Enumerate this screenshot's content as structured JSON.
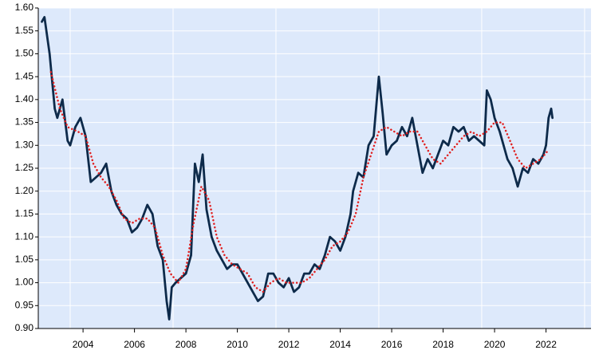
{
  "chart_data": {
    "type": "line",
    "xlim": [
      2002.76,
      2024.25
    ],
    "ylim": [
      0.9,
      1.6
    ],
    "xticks": [
      {
        "value": 2004.5,
        "label": "2004"
      },
      {
        "value": 2006.5,
        "label": "2006"
      },
      {
        "value": 2008.5,
        "label": "2008"
      },
      {
        "value": 2010.5,
        "label": "2010"
      },
      {
        "value": 2012.5,
        "label": "2012"
      },
      {
        "value": 2014.5,
        "label": "2014"
      },
      {
        "value": 2016.5,
        "label": "2016"
      },
      {
        "value": 2018.5,
        "label": "2018"
      },
      {
        "value": 2020.5,
        "label": "2020"
      },
      {
        "value": 2022.5,
        "label": "2022"
      }
    ],
    "xgrid": [
      2004,
      2008,
      2012,
      2016,
      2020,
      2024
    ],
    "yticks": [
      {
        "value": 0.9,
        "label": "0.90"
      },
      {
        "value": 0.95,
        "label": "0.95"
      },
      {
        "value": 1.0,
        "label": "1.00"
      },
      {
        "value": 1.05,
        "label": "1.05"
      },
      {
        "value": 1.1,
        "label": "1.10"
      },
      {
        "value": 1.15,
        "label": "1.15"
      },
      {
        "value": 1.2,
        "label": "1.20"
      },
      {
        "value": 1.25,
        "label": "1.25"
      },
      {
        "value": 1.3,
        "label": "1.30"
      },
      {
        "value": 1.35,
        "label": "1.35"
      },
      {
        "value": 1.4,
        "label": "1.40"
      },
      {
        "value": 1.45,
        "label": "1.45"
      },
      {
        "value": 1.5,
        "label": "1.50"
      },
      {
        "value": 1.55,
        "label": "1.55"
      },
      {
        "value": 1.6,
        "label": "1.60"
      }
    ],
    "grid": true,
    "background": "#dde9fb",
    "series": [
      {
        "color": "#0d2a4a",
        "style": "solid",
        "x": [
          2002.9,
          2003.0,
          2003.2,
          2003.4,
          2003.5,
          2003.7,
          2003.9,
          2004.0,
          2004.2,
          2004.4,
          2004.6,
          2004.8,
          2005.0,
          2005.2,
          2005.4,
          2005.6,
          2005.8,
          2006.0,
          2006.2,
          2006.4,
          2006.6,
          2006.8,
          2007.0,
          2007.2,
          2007.4,
          2007.6,
          2007.75,
          2007.85,
          2007.95,
          2008.1,
          2008.3,
          2008.5,
          2008.7,
          2008.85,
          2009.0,
          2009.15,
          2009.3,
          2009.5,
          2009.7,
          2009.9,
          2010.1,
          2010.3,
          2010.5,
          2010.7,
          2010.9,
          2011.1,
          2011.3,
          2011.5,
          2011.7,
          2011.9,
          2012.1,
          2012.3,
          2012.5,
          2012.7,
          2012.9,
          2013.1,
          2013.3,
          2013.5,
          2013.7,
          2013.9,
          2014.1,
          2014.3,
          2014.5,
          2014.7,
          2014.9,
          2015.0,
          2015.2,
          2015.4,
          2015.6,
          2015.8,
          2016.0,
          2016.15,
          2016.3,
          2016.5,
          2016.7,
          2016.9,
          2017.1,
          2017.3,
          2017.5,
          2017.7,
          2017.9,
          2018.1,
          2018.3,
          2018.5,
          2018.7,
          2018.9,
          2019.1,
          2019.3,
          2019.5,
          2019.7,
          2019.9,
          2020.1,
          2020.2,
          2020.35,
          2020.5,
          2020.7,
          2020.9,
          2021.0,
          2021.2,
          2021.4,
          2021.6,
          2021.8,
          2022.0,
          2022.2,
          2022.4,
          2022.5,
          2022.6,
          2022.7,
          2022.75
        ],
        "values": [
          1.57,
          1.58,
          1.5,
          1.38,
          1.36,
          1.4,
          1.31,
          1.3,
          1.34,
          1.36,
          1.32,
          1.22,
          1.23,
          1.24,
          1.26,
          1.2,
          1.17,
          1.15,
          1.14,
          1.11,
          1.12,
          1.14,
          1.17,
          1.15,
          1.08,
          1.05,
          0.96,
          0.92,
          0.99,
          1.0,
          1.01,
          1.02,
          1.06,
          1.26,
          1.22,
          1.28,
          1.16,
          1.1,
          1.07,
          1.05,
          1.03,
          1.04,
          1.04,
          1.02,
          1.0,
          0.98,
          0.96,
          0.97,
          1.02,
          1.02,
          1.0,
          0.99,
          1.01,
          0.98,
          0.99,
          1.02,
          1.02,
          1.04,
          1.03,
          1.06,
          1.1,
          1.09,
          1.07,
          1.1,
          1.15,
          1.2,
          1.24,
          1.23,
          1.3,
          1.32,
          1.45,
          1.37,
          1.28,
          1.3,
          1.31,
          1.34,
          1.32,
          1.36,
          1.3,
          1.24,
          1.27,
          1.25,
          1.28,
          1.31,
          1.3,
          1.34,
          1.33,
          1.34,
          1.31,
          1.32,
          1.31,
          1.3,
          1.42,
          1.4,
          1.36,
          1.33,
          1.29,
          1.27,
          1.25,
          1.21,
          1.25,
          1.24,
          1.27,
          1.26,
          1.28,
          1.3,
          1.36,
          1.38,
          1.36
        ]
      },
      {
        "color": "#e02020",
        "style": "dotted",
        "x": [
          2003.25,
          2003.6,
          2003.9,
          2004.3,
          2004.6,
          2004.9,
          2005.2,
          2005.5,
          2005.8,
          2006.1,
          2006.4,
          2006.7,
          2007.0,
          2007.3,
          2007.6,
          2007.9,
          2008.2,
          2008.5,
          2008.8,
          2009.1,
          2009.4,
          2009.7,
          2010.0,
          2010.3,
          2010.6,
          2010.9,
          2011.2,
          2011.5,
          2011.8,
          2012.1,
          2012.4,
          2012.7,
          2013.0,
          2013.3,
          2013.6,
          2013.9,
          2014.2,
          2014.5,
          2014.8,
          2015.1,
          2015.4,
          2015.7,
          2016.0,
          2016.3,
          2016.6,
          2016.9,
          2017.2,
          2017.5,
          2017.8,
          2018.1,
          2018.4,
          2018.7,
          2019.0,
          2019.3,
          2019.6,
          2019.9,
          2020.2,
          2020.5,
          2020.8,
          2021.1,
          2021.4,
          2021.7,
          2022.0,
          2022.3,
          2022.6
        ],
        "values": [
          1.46,
          1.38,
          1.34,
          1.33,
          1.32,
          1.26,
          1.23,
          1.21,
          1.18,
          1.14,
          1.13,
          1.14,
          1.14,
          1.12,
          1.06,
          1.02,
          1.0,
          1.03,
          1.13,
          1.21,
          1.18,
          1.1,
          1.06,
          1.04,
          1.03,
          1.02,
          0.99,
          0.98,
          1.0,
          1.01,
          1.0,
          1.0,
          1.0,
          1.01,
          1.03,
          1.05,
          1.08,
          1.09,
          1.11,
          1.15,
          1.23,
          1.28,
          1.33,
          1.34,
          1.33,
          1.32,
          1.33,
          1.33,
          1.3,
          1.27,
          1.26,
          1.28,
          1.3,
          1.32,
          1.33,
          1.32,
          1.33,
          1.35,
          1.35,
          1.31,
          1.27,
          1.25,
          1.26,
          1.27,
          1.29
        ]
      }
    ]
  }
}
